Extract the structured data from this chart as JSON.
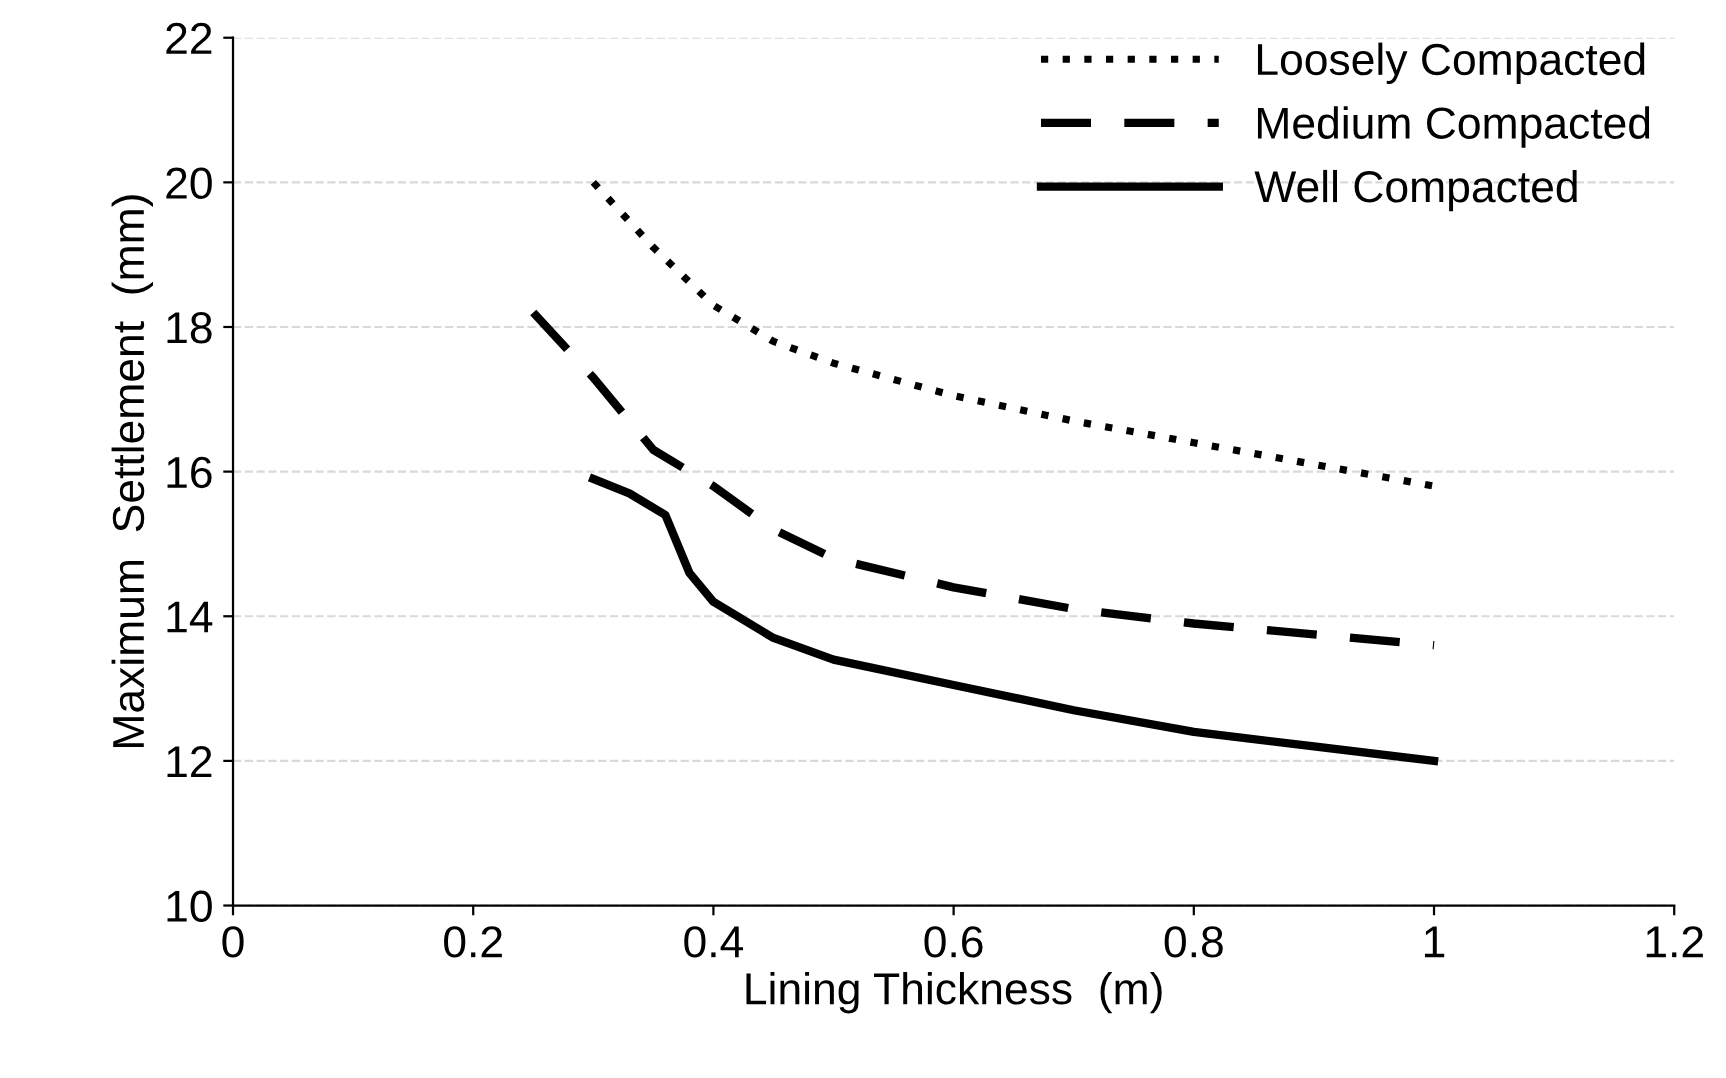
{
  "chart_data": {
    "type": "line",
    "xlabel": "Lining Thickness  (m)",
    "ylabel": "Maximum  Settlement  (mm)",
    "xlim": [
      0,
      1.2
    ],
    "xticks": [
      0,
      0.2,
      0.4,
      0.6,
      0.8,
      1,
      1.2
    ],
    "ylim": [
      10,
      22
    ],
    "yticks": [
      10,
      12,
      14,
      16,
      18,
      20,
      22
    ],
    "grid": "y",
    "legend": "top right",
    "marker": "none",
    "series": [
      {
        "name": "Loosely Compacted",
        "color": "#000000",
        "line_style": "dotted",
        "x": [
          0.3,
          0.35,
          0.4,
          0.45,
          0.5,
          0.6,
          0.7,
          0.8,
          0.9,
          1.0
        ],
        "values": [
          20.0,
          19.1,
          18.3,
          17.8,
          17.5,
          17.05,
          16.7,
          16.4,
          16.1,
          15.8
        ]
      },
      {
        "name": "Medium Compacted",
        "color": "#000000",
        "line_style": "dashed",
        "x": [
          0.25,
          0.3,
          0.35,
          0.4,
          0.45,
          0.5,
          0.6,
          0.7,
          0.8,
          0.9,
          1.0
        ],
        "values": [
          18.2,
          17.3,
          16.3,
          15.8,
          15.2,
          14.8,
          14.4,
          14.1,
          13.9,
          13.75,
          13.6
        ]
      },
      {
        "name": "Well Compacted",
        "color": "#000000",
        "line_style": "solid",
        "x": [
          0.3,
          0.33,
          0.36,
          0.38,
          0.4,
          0.45,
          0.5,
          0.6,
          0.7,
          0.8,
          0.9,
          1.0
        ],
        "values": [
          15.9,
          15.7,
          15.4,
          14.6,
          14.2,
          13.7,
          13.4,
          13.05,
          12.7,
          12.4,
          12.2,
          12.0
        ]
      }
    ]
  }
}
